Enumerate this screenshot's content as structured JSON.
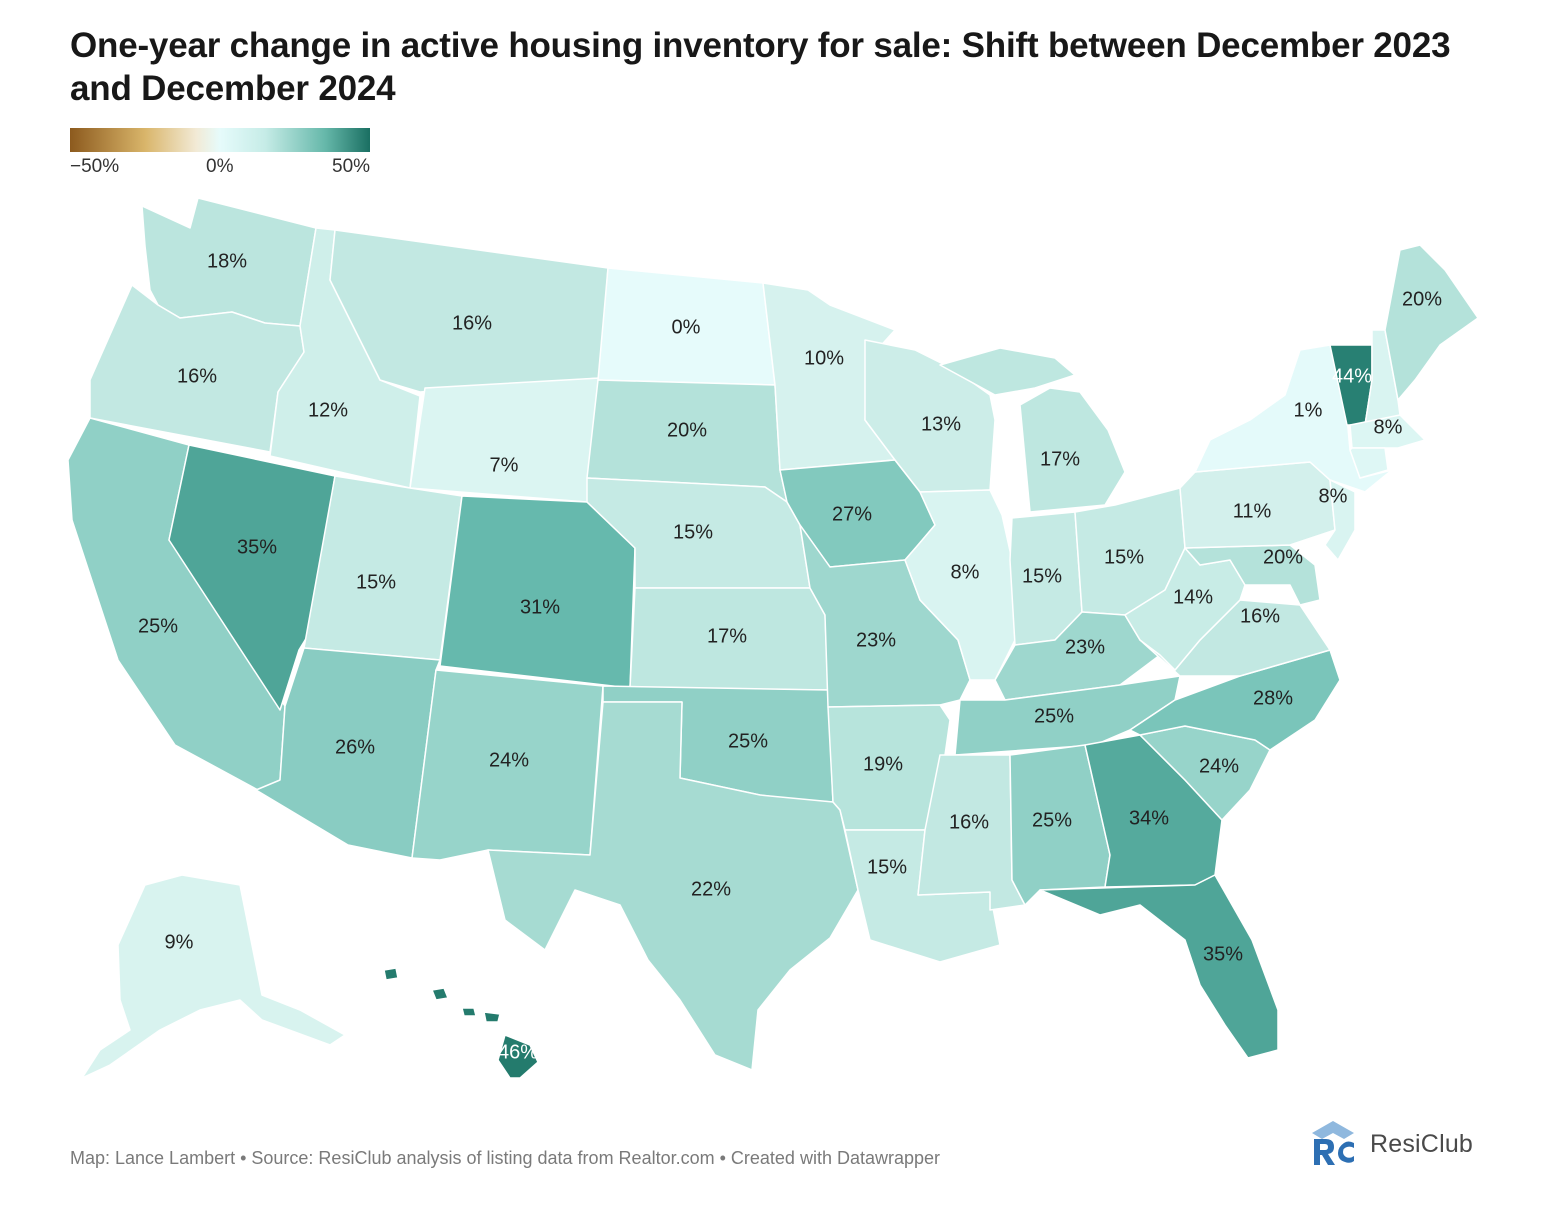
{
  "title": "One-year change in active housing inventory for sale: Shift between December 2023 and December 2024",
  "legend": {
    "min_label": "−50%",
    "mid_label": "0%",
    "max_label": "50%",
    "min": -50,
    "max": 50,
    "colors": {
      "neg": "#8c5a1e",
      "zero": "#e6fbfb",
      "pos": "#1a6f62"
    }
  },
  "map": {
    "type": "choropleth",
    "region": "United States",
    "unit": "%",
    "states": [
      {
        "code": "WA",
        "name": "Washington",
        "value": 18,
        "label": "18%"
      },
      {
        "code": "OR",
        "name": "Oregon",
        "value": 16,
        "label": "16%"
      },
      {
        "code": "CA",
        "name": "California",
        "value": 25,
        "label": "25%"
      },
      {
        "code": "NV",
        "name": "Nevada",
        "value": 35,
        "label": "35%"
      },
      {
        "code": "ID",
        "name": "Idaho",
        "value": 12,
        "label": "12%"
      },
      {
        "code": "MT",
        "name": "Montana",
        "value": 16,
        "label": "16%"
      },
      {
        "code": "WY",
        "name": "Wyoming",
        "value": 7,
        "label": "7%"
      },
      {
        "code": "UT",
        "name": "Utah",
        "value": 15,
        "label": "15%"
      },
      {
        "code": "CO",
        "name": "Colorado",
        "value": 31,
        "label": "31%"
      },
      {
        "code": "AZ",
        "name": "Arizona",
        "value": 26,
        "label": "26%"
      },
      {
        "code": "NM",
        "name": "New Mexico",
        "value": 24,
        "label": "24%"
      },
      {
        "code": "ND",
        "name": "North Dakota",
        "value": 0,
        "label": "0%"
      },
      {
        "code": "SD",
        "name": "South Dakota",
        "value": 20,
        "label": "20%"
      },
      {
        "code": "NE",
        "name": "Nebraska",
        "value": 15,
        "label": "15%"
      },
      {
        "code": "KS",
        "name": "Kansas",
        "value": 17,
        "label": "17%"
      },
      {
        "code": "OK",
        "name": "Oklahoma",
        "value": 25,
        "label": "25%"
      },
      {
        "code": "TX",
        "name": "Texas",
        "value": 22,
        "label": "22%"
      },
      {
        "code": "MN",
        "name": "Minnesota",
        "value": 10,
        "label": "10%"
      },
      {
        "code": "IA",
        "name": "Iowa",
        "value": 27,
        "label": "27%"
      },
      {
        "code": "MO",
        "name": "Missouri",
        "value": 23,
        "label": "23%"
      },
      {
        "code": "AR",
        "name": "Arkansas",
        "value": 19,
        "label": "19%"
      },
      {
        "code": "LA",
        "name": "Louisiana",
        "value": 15,
        "label": "15%"
      },
      {
        "code": "WI",
        "name": "Wisconsin",
        "value": 13,
        "label": "13%"
      },
      {
        "code": "IL",
        "name": "Illinois",
        "value": 8,
        "label": "8%"
      },
      {
        "code": "MI",
        "name": "Michigan",
        "value": 17,
        "label": "17%"
      },
      {
        "code": "IN",
        "name": "Indiana",
        "value": 15,
        "label": "15%"
      },
      {
        "code": "OH",
        "name": "Ohio",
        "value": 15,
        "label": "15%"
      },
      {
        "code": "KY",
        "name": "Kentucky",
        "value": 23,
        "label": "23%"
      },
      {
        "code": "TN",
        "name": "Tennessee",
        "value": 25,
        "label": "25%"
      },
      {
        "code": "MS",
        "name": "Mississippi",
        "value": 16,
        "label": "16%"
      },
      {
        "code": "AL",
        "name": "Alabama",
        "value": 25,
        "label": "25%"
      },
      {
        "code": "GA",
        "name": "Georgia",
        "value": 34,
        "label": "34%"
      },
      {
        "code": "FL",
        "name": "Florida",
        "value": 35,
        "label": "35%"
      },
      {
        "code": "SC",
        "name": "South Carolina",
        "value": 24,
        "label": "24%"
      },
      {
        "code": "NC",
        "name": "North Carolina",
        "value": 28,
        "label": "28%"
      },
      {
        "code": "VA",
        "name": "Virginia",
        "value": 16,
        "label": "16%"
      },
      {
        "code": "WV",
        "name": "West Virginia",
        "value": 14,
        "label": "14%"
      },
      {
        "code": "MD",
        "name": "Maryland",
        "value": 20,
        "label": "20%"
      },
      {
        "code": "PA",
        "name": "Pennsylvania",
        "value": 11,
        "label": "11%"
      },
      {
        "code": "NJ",
        "name": "New Jersey",
        "value": 8,
        "label": "8%"
      },
      {
        "code": "NY",
        "name": "New York",
        "value": 1,
        "label": "1%"
      },
      {
        "code": "VT",
        "name": "Vermont",
        "value": 44,
        "label": "44%"
      },
      {
        "code": "NH",
        "name": "New Hampshire",
        "value": 8,
        "label": "8%"
      },
      {
        "code": "ME",
        "name": "Maine",
        "value": 20,
        "label": "20%"
      },
      {
        "code": "AK",
        "name": "Alaska",
        "value": 9,
        "label": "9%"
      },
      {
        "code": "HI",
        "name": "Hawaii",
        "value": 46,
        "label": "46%"
      }
    ]
  },
  "footer": "Map: Lance Lambert • Source: ResiClub analysis of listing data from Realtor.com • Created with Datawrapper",
  "brand": {
    "name": "ResiClub",
    "logo_text": "RC",
    "colors": {
      "logo": "#2d6fb3"
    }
  }
}
